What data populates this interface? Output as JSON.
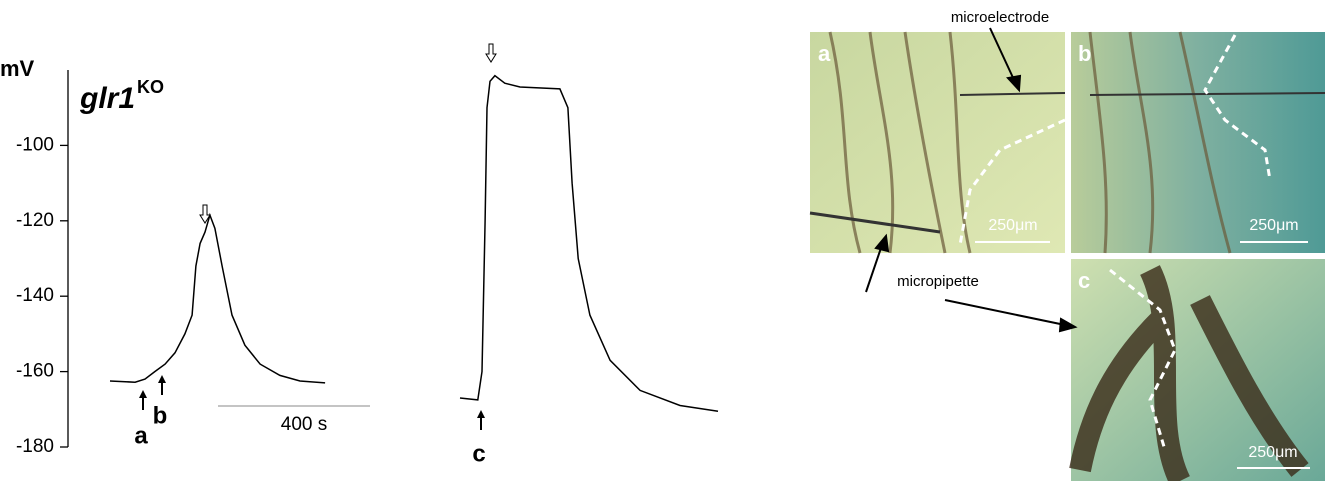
{
  "chart_data": {
    "type": "line",
    "title": "glr1",
    "title_superscript": "KO",
    "ylabel": "mV",
    "ylim": [
      -180,
      -80
    ],
    "yticks": [
      -100,
      -120,
      -140,
      -160,
      -180
    ],
    "xlim": [
      0,
      1600
    ],
    "series": [
      {
        "color": "#000000",
        "x": [
          0,
          66,
          92,
          118,
          145,
          171,
          197,
          216,
          226,
          237,
          250,
          263,
          276,
          295,
          321,
          355,
          395,
          447,
          500,
          566
        ],
        "values": [
          -162.5,
          -162.8,
          -162,
          -160,
          -158,
          -155,
          -150,
          -145,
          -132,
          -126,
          -123,
          -118.5,
          -122,
          -132,
          -145,
          -153,
          -158,
          -161,
          -162.5,
          -163
        ]
      },
      {
        "color": "#000000",
        "x": [
          921,
          968,
          979,
          987,
          992,
          1000,
          1013,
          1039,
          1079,
          1184,
          1205,
          1216,
          1232,
          1263,
          1316,
          1395,
          1500,
          1600
        ],
        "values": [
          -167,
          -167.5,
          -160,
          -120,
          -90,
          -83,
          -81.5,
          -83.5,
          -84.5,
          -85,
          -90,
          -110,
          -130,
          -145,
          -157,
          -165,
          -169,
          -170.5
        ]
      }
    ],
    "scale_bar": {
      "value": 400,
      "label": "400 s"
    },
    "annotations": [
      "a",
      "b",
      "c"
    ]
  },
  "micrographs": {
    "panels": [
      {
        "label": "a",
        "scale": "250μm"
      },
      {
        "label": "b",
        "scale": "250μm"
      },
      {
        "label": "c",
        "scale": "250μm"
      }
    ],
    "microelectrode": "microelectrode",
    "micropipette": "micropipette"
  }
}
